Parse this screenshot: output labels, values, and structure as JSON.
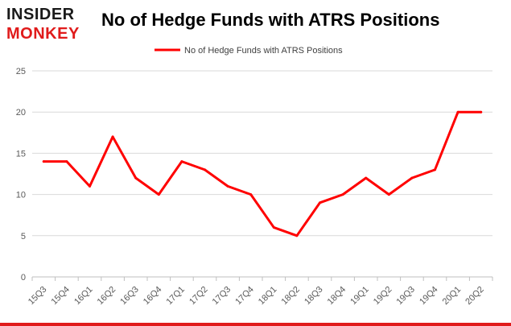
{
  "brand": {
    "line1": "INSIDER",
    "line2": "MONKEY",
    "color_dark": "#1a1a1a",
    "color_red": "#e01b1b"
  },
  "chart_data": {
    "type": "line",
    "title": "No of Hedge Funds with ATRS Positions",
    "xlabel": "",
    "ylabel": "",
    "categories": [
      "15Q3",
      "15Q4",
      "16Q1",
      "16Q2",
      "16Q3",
      "16Q4",
      "17Q1",
      "17Q2",
      "17Q3",
      "17Q4",
      "18Q1",
      "18Q2",
      "18Q3",
      "18Q4",
      "19Q1",
      "19Q2",
      "19Q3",
      "19Q4",
      "20Q1",
      "20Q2"
    ],
    "series": [
      {
        "name": "No of Hedge Funds with ATRS Positions",
        "values": [
          14,
          14,
          11,
          17,
          12,
          10,
          14,
          13,
          11,
          10,
          6,
          5,
          9,
          10,
          12,
          10,
          12,
          13,
          20,
          20
        ],
        "color": "#ff0000"
      }
    ],
    "ylim": [
      0,
      25
    ],
    "yticks": [
      0,
      5,
      10,
      15,
      20,
      25
    ],
    "grid": true,
    "legend_position": "top-center"
  }
}
